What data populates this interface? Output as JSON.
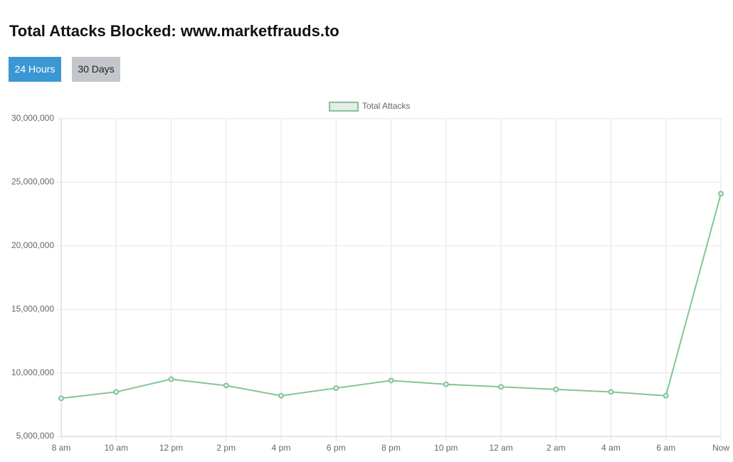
{
  "header": {
    "title": "Total Attacks Blocked: www.marketfrauds.to"
  },
  "buttons": [
    "24 Hours",
    "30 Days"
  ],
  "chart_data": {
    "type": "line",
    "categories": [
      "8 am",
      "10 am",
      "12 pm",
      "2 pm",
      "4 pm",
      "6 pm",
      "8 pm",
      "10 pm",
      "12 am",
      "2 am",
      "4 am",
      "6 am",
      "Now"
    ],
    "series": [
      {
        "name": "Total Attacks",
        "color": "#82c596",
        "values": [
          8000000,
          8500000,
          9500000,
          9000000,
          8200000,
          8800000,
          9400000,
          9100000,
          8900000,
          8700000,
          8500000,
          8200000,
          24100000
        ]
      }
    ],
    "ylim": [
      5000000,
      30000000
    ],
    "yticks": [
      {
        "value": 5000000,
        "label": "5,000,000"
      },
      {
        "value": 10000000,
        "label": "10,000,000"
      },
      {
        "value": 15000000,
        "label": "15,000,000"
      },
      {
        "value": 20000000,
        "label": "20,000,000"
      },
      {
        "value": 25000000,
        "label": "25,000,000"
      },
      {
        "value": 30000000,
        "label": "30,000,000"
      }
    ],
    "grid": true,
    "legend": "top"
  }
}
